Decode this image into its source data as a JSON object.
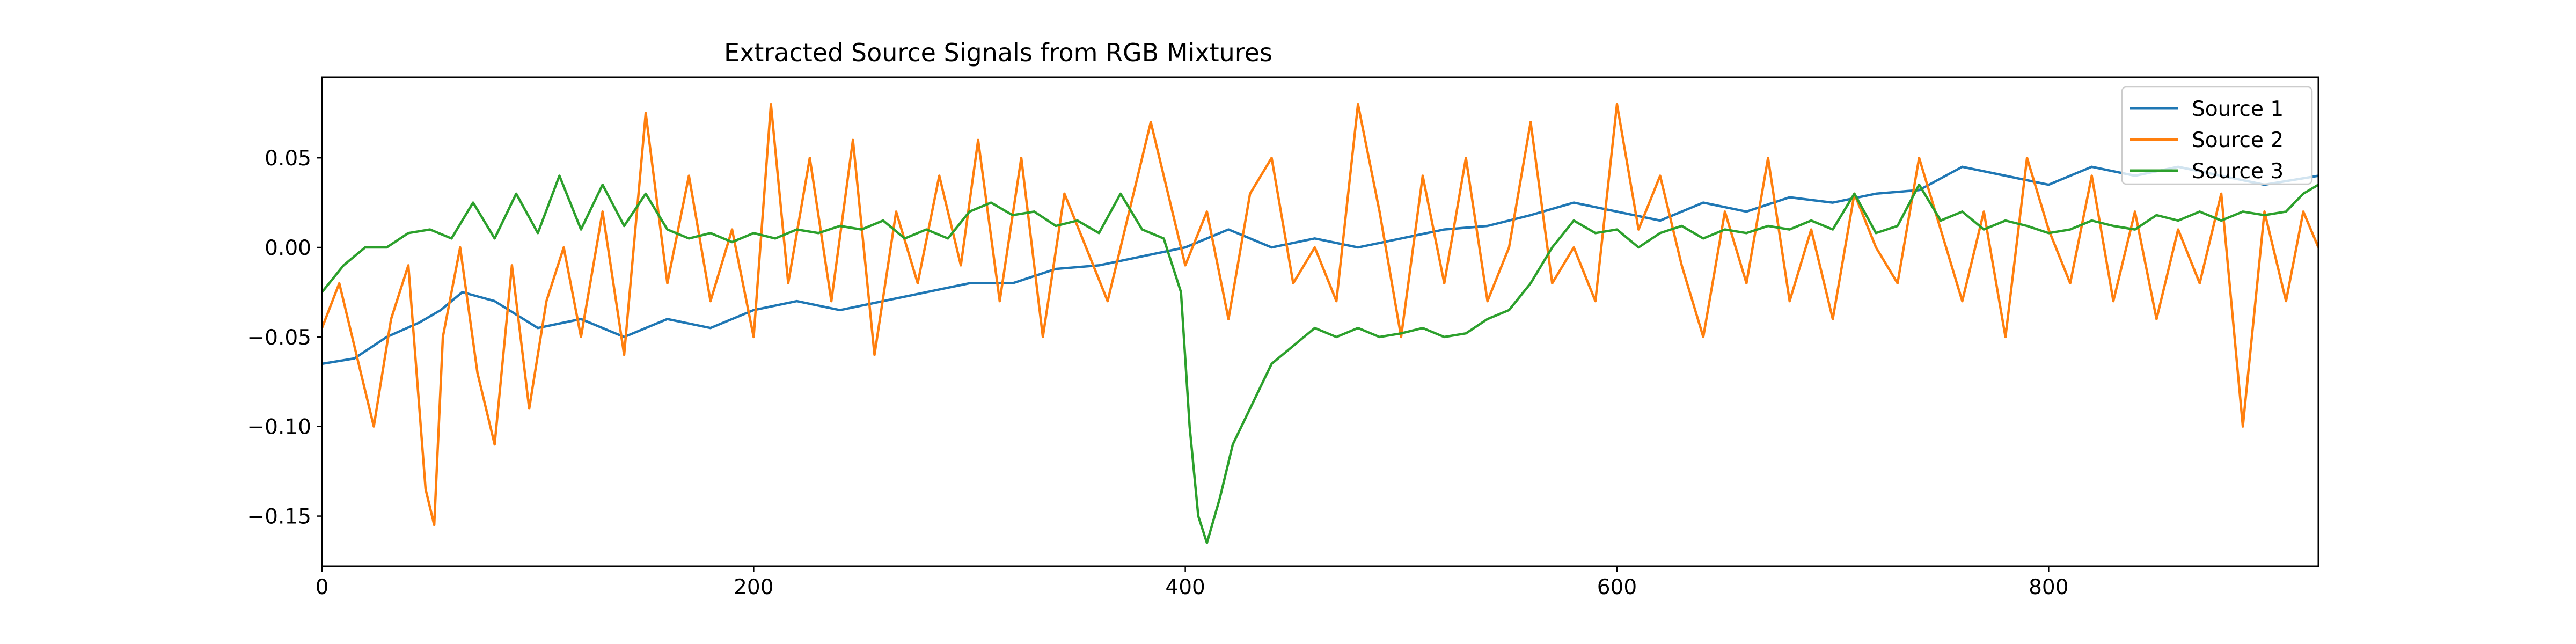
{
  "chart_data": {
    "type": "line",
    "title": "Extracted Source Signals from RGB Mixtures",
    "xlabel": "",
    "ylabel": "",
    "xlim": [
      0,
      925
    ],
    "ylim": [
      -0.178,
      0.095
    ],
    "xticks": [
      0,
      200,
      400,
      600,
      800
    ],
    "yticks": [
      -0.15,
      -0.1,
      -0.05,
      0.0,
      0.05
    ],
    "ytick_labels": [
      "−0.15",
      "−0.10",
      "−0.05",
      "0.00",
      "0.05"
    ],
    "grid": false,
    "legend_position": "top-right",
    "series": [
      {
        "name": "Source 1",
        "color": "#1f77b4",
        "points": [
          [
            0,
            -0.065
          ],
          [
            15,
            -0.062
          ],
          [
            30,
            -0.05
          ],
          [
            45,
            -0.042
          ],
          [
            55,
            -0.035
          ],
          [
            65,
            -0.025
          ],
          [
            80,
            -0.03
          ],
          [
            100,
            -0.045
          ],
          [
            120,
            -0.04
          ],
          [
            140,
            -0.05
          ],
          [
            160,
            -0.04
          ],
          [
            180,
            -0.045
          ],
          [
            200,
            -0.035
          ],
          [
            220,
            -0.03
          ],
          [
            240,
            -0.035
          ],
          [
            260,
            -0.03
          ],
          [
            280,
            -0.025
          ],
          [
            300,
            -0.02
          ],
          [
            320,
            -0.02
          ],
          [
            340,
            -0.012
          ],
          [
            360,
            -0.01
          ],
          [
            380,
            -0.005
          ],
          [
            400,
            0.0
          ],
          [
            420,
            0.01
          ],
          [
            440,
            0.0
          ],
          [
            460,
            0.005
          ],
          [
            480,
            0.0
          ],
          [
            500,
            0.005
          ],
          [
            520,
            0.01
          ],
          [
            540,
            0.012
          ],
          [
            560,
            0.018
          ],
          [
            580,
            0.025
          ],
          [
            600,
            0.02
          ],
          [
            620,
            0.015
          ],
          [
            640,
            0.025
          ],
          [
            660,
            0.02
          ],
          [
            680,
            0.028
          ],
          [
            700,
            0.025
          ],
          [
            720,
            0.03
          ],
          [
            740,
            0.032
          ],
          [
            760,
            0.045
          ],
          [
            780,
            0.04
          ],
          [
            800,
            0.035
          ],
          [
            820,
            0.045
          ],
          [
            840,
            0.04
          ],
          [
            860,
            0.045
          ],
          [
            880,
            0.04
          ],
          [
            900,
            0.035
          ],
          [
            925,
            0.04
          ]
        ]
      },
      {
        "name": "Source 2",
        "color": "#ff7f0e",
        "points": [
          [
            0,
            -0.045
          ],
          [
            8,
            -0.02
          ],
          [
            16,
            -0.06
          ],
          [
            24,
            -0.1
          ],
          [
            32,
            -0.04
          ],
          [
            40,
            -0.01
          ],
          [
            48,
            -0.135
          ],
          [
            52,
            -0.155
          ],
          [
            56,
            -0.05
          ],
          [
            64,
            0.0
          ],
          [
            72,
            -0.07
          ],
          [
            80,
            -0.11
          ],
          [
            88,
            -0.01
          ],
          [
            96,
            -0.09
          ],
          [
            104,
            -0.03
          ],
          [
            112,
            0.0
          ],
          [
            120,
            -0.05
          ],
          [
            130,
            0.02
          ],
          [
            140,
            -0.06
          ],
          [
            150,
            0.075
          ],
          [
            160,
            -0.02
          ],
          [
            170,
            0.04
          ],
          [
            180,
            -0.03
          ],
          [
            190,
            0.01
          ],
          [
            200,
            -0.05
          ],
          [
            208,
            0.08
          ],
          [
            216,
            -0.02
          ],
          [
            226,
            0.05
          ],
          [
            236,
            -0.03
          ],
          [
            246,
            0.06
          ],
          [
            256,
            -0.06
          ],
          [
            266,
            0.02
          ],
          [
            276,
            -0.02
          ],
          [
            286,
            0.04
          ],
          [
            296,
            -0.01
          ],
          [
            304,
            0.06
          ],
          [
            314,
            -0.03
          ],
          [
            324,
            0.05
          ],
          [
            334,
            -0.05
          ],
          [
            344,
            0.03
          ],
          [
            354,
            0.0
          ],
          [
            364,
            -0.03
          ],
          [
            374,
            0.02
          ],
          [
            384,
            0.07
          ],
          [
            392,
            0.03
          ],
          [
            400,
            -0.01
          ],
          [
            410,
            0.02
          ],
          [
            420,
            -0.04
          ],
          [
            430,
            0.03
          ],
          [
            440,
            0.05
          ],
          [
            450,
            -0.02
          ],
          [
            460,
            0.0
          ],
          [
            470,
            -0.03
          ],
          [
            480,
            0.08
          ],
          [
            490,
            0.02
          ],
          [
            500,
            -0.05
          ],
          [
            510,
            0.04
          ],
          [
            520,
            -0.02
          ],
          [
            530,
            0.05
          ],
          [
            540,
            -0.03
          ],
          [
            550,
            0.0
          ],
          [
            560,
            0.07
          ],
          [
            570,
            -0.02
          ],
          [
            580,
            0.0
          ],
          [
            590,
            -0.03
          ],
          [
            600,
            0.08
          ],
          [
            610,
            0.01
          ],
          [
            620,
            0.04
          ],
          [
            630,
            -0.01
          ],
          [
            640,
            -0.05
          ],
          [
            650,
            0.02
          ],
          [
            660,
            -0.02
          ],
          [
            670,
            0.05
          ],
          [
            680,
            -0.03
          ],
          [
            690,
            0.01
          ],
          [
            700,
            -0.04
          ],
          [
            710,
            0.03
          ],
          [
            720,
            0.0
          ],
          [
            730,
            -0.02
          ],
          [
            740,
            0.05
          ],
          [
            750,
            0.01
          ],
          [
            760,
            -0.03
          ],
          [
            770,
            0.02
          ],
          [
            780,
            -0.05
          ],
          [
            790,
            0.05
          ],
          [
            800,
            0.01
          ],
          [
            810,
            -0.02
          ],
          [
            820,
            0.04
          ],
          [
            830,
            -0.03
          ],
          [
            840,
            0.02
          ],
          [
            850,
            -0.04
          ],
          [
            860,
            0.01
          ],
          [
            870,
            -0.02
          ],
          [
            880,
            0.03
          ],
          [
            890,
            -0.1
          ],
          [
            900,
            0.02
          ],
          [
            910,
            -0.03
          ],
          [
            918,
            0.02
          ],
          [
            925,
            0.0
          ]
        ]
      },
      {
        "name": "Source 3",
        "color": "#2ca02c",
        "points": [
          [
            0,
            -0.025
          ],
          [
            10,
            -0.01
          ],
          [
            20,
            0.0
          ],
          [
            30,
            0.0
          ],
          [
            40,
            0.008
          ],
          [
            50,
            0.01
          ],
          [
            60,
            0.005
          ],
          [
            70,
            0.025
          ],
          [
            80,
            0.005
          ],
          [
            90,
            0.03
          ],
          [
            100,
            0.008
          ],
          [
            110,
            0.04
          ],
          [
            120,
            0.01
          ],
          [
            130,
            0.035
          ],
          [
            140,
            0.012
          ],
          [
            150,
            0.03
          ],
          [
            160,
            0.01
          ],
          [
            170,
            0.005
          ],
          [
            180,
            0.008
          ],
          [
            190,
            0.003
          ],
          [
            200,
            0.008
          ],
          [
            210,
            0.005
          ],
          [
            220,
            0.01
          ],
          [
            230,
            0.008
          ],
          [
            240,
            0.012
          ],
          [
            250,
            0.01
          ],
          [
            260,
            0.015
          ],
          [
            270,
            0.005
          ],
          [
            280,
            0.01
          ],
          [
            290,
            0.005
          ],
          [
            300,
            0.02
          ],
          [
            310,
            0.025
          ],
          [
            320,
            0.018
          ],
          [
            330,
            0.02
          ],
          [
            340,
            0.012
          ],
          [
            350,
            0.015
          ],
          [
            360,
            0.008
          ],
          [
            370,
            0.03
          ],
          [
            380,
            0.01
          ],
          [
            390,
            0.005
          ],
          [
            398,
            -0.025
          ],
          [
            402,
            -0.1
          ],
          [
            406,
            -0.15
          ],
          [
            410,
            -0.165
          ],
          [
            416,
            -0.14
          ],
          [
            422,
            -0.11
          ],
          [
            430,
            -0.09
          ],
          [
            440,
            -0.065
          ],
          [
            450,
            -0.055
          ],
          [
            460,
            -0.045
          ],
          [
            470,
            -0.05
          ],
          [
            480,
            -0.045
          ],
          [
            490,
            -0.05
          ],
          [
            500,
            -0.048
          ],
          [
            510,
            -0.045
          ],
          [
            520,
            -0.05
          ],
          [
            530,
            -0.048
          ],
          [
            540,
            -0.04
          ],
          [
            550,
            -0.035
          ],
          [
            560,
            -0.02
          ],
          [
            570,
            0.0
          ],
          [
            580,
            0.015
          ],
          [
            590,
            0.008
          ],
          [
            600,
            0.01
          ],
          [
            610,
            0.0
          ],
          [
            620,
            0.008
          ],
          [
            630,
            0.012
          ],
          [
            640,
            0.005
          ],
          [
            650,
            0.01
          ],
          [
            660,
            0.008
          ],
          [
            670,
            0.012
          ],
          [
            680,
            0.01
          ],
          [
            690,
            0.015
          ],
          [
            700,
            0.01
          ],
          [
            710,
            0.03
          ],
          [
            720,
            0.008
          ],
          [
            730,
            0.012
          ],
          [
            740,
            0.035
          ],
          [
            750,
            0.015
          ],
          [
            760,
            0.02
          ],
          [
            770,
            0.01
          ],
          [
            780,
            0.015
          ],
          [
            790,
            0.012
          ],
          [
            800,
            0.008
          ],
          [
            810,
            0.01
          ],
          [
            820,
            0.015
          ],
          [
            830,
            0.012
          ],
          [
            840,
            0.01
          ],
          [
            850,
            0.018
          ],
          [
            860,
            0.015
          ],
          [
            870,
            0.02
          ],
          [
            880,
            0.015
          ],
          [
            890,
            0.02
          ],
          [
            900,
            0.018
          ],
          [
            910,
            0.02
          ],
          [
            918,
            0.03
          ],
          [
            925,
            0.035
          ]
        ]
      }
    ]
  }
}
